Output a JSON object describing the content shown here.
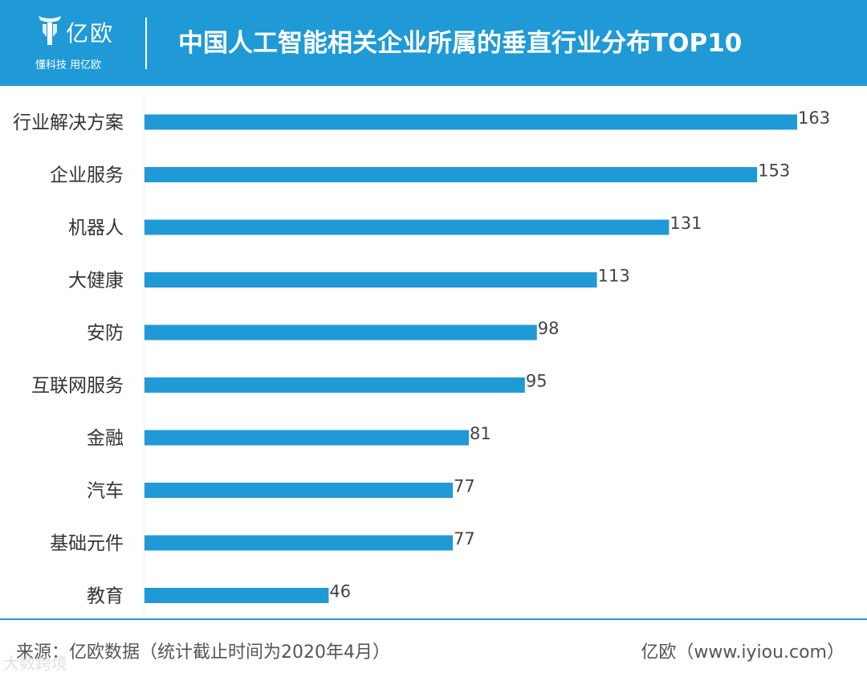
{
  "header": {
    "logo_name": "亿欧",
    "logo_slogan": "懂科技 用亿欧",
    "title": "中国人工智能相关企业所属的垂直行业分布TOP10"
  },
  "colors": {
    "header_bg": "#1f9ad6",
    "bar": "#1f9ad6"
  },
  "chart_data": {
    "type": "bar",
    "orientation": "horizontal",
    "title": "中国人工智能相关企业所属的垂直行业分布TOP10",
    "categories": [
      "行业解决方案",
      "企业服务",
      "机器人",
      "大健康",
      "安防",
      "互联网服务",
      "金融",
      "汽车",
      "基础元件",
      "教育"
    ],
    "values": [
      163,
      153,
      131,
      113,
      98,
      95,
      81,
      77,
      77,
      46
    ],
    "xlim": [
      0,
      163
    ],
    "grid": false,
    "legend": "none"
  },
  "footer": {
    "source": "来源：亿欧数据（统计截止时间为2020年4月）",
    "site": "亿欧（www.iyiou.com）",
    "watermark": "大数跨境"
  }
}
